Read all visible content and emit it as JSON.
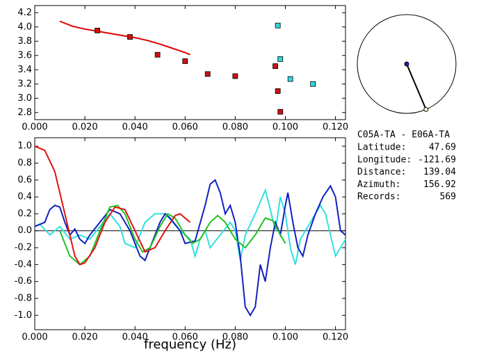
{
  "chart_data": [
    {
      "type": "scatter",
      "xlim": [
        0,
        0.124
      ],
      "ylim": [
        2.7,
        4.3
      ],
      "xticks": [
        {
          "value": 0,
          "label": "0.000"
        },
        {
          "value": 0.02,
          "label": "0.020"
        },
        {
          "value": 0.04,
          "label": "0.040"
        },
        {
          "value": 0.06,
          "label": "0.060"
        },
        {
          "value": 0.08,
          "label": "0.080"
        },
        {
          "value": 0.1,
          "label": "0.100"
        },
        {
          "value": 0.12,
          "label": "0.120"
        }
      ],
      "yticks": [
        4.2,
        {
          "value": 4.0,
          "label": "4.0"
        },
        3.8,
        3.6,
        3.4,
        3.2,
        {
          "value": 3.0,
          "label": "3.0"
        },
        2.8
      ],
      "series": [
        {
          "style": "line",
          "color": "#e00000",
          "x": [
            0.01,
            0.015,
            0.02,
            0.025,
            0.03,
            0.035,
            0.04,
            0.045,
            0.05,
            0.055,
            0.06,
            0.062
          ],
          "values": [
            4.08,
            4.01,
            3.97,
            3.94,
            3.91,
            3.88,
            3.85,
            3.81,
            3.76,
            3.7,
            3.64,
            3.61
          ]
        },
        {
          "style": "marker",
          "color": "#d01010",
          "x": [
            0.025,
            0.038,
            0.049,
            0.06,
            0.069,
            0.08,
            0.096,
            0.097,
            0.098
          ],
          "values": [
            3.95,
            3.86,
            3.61,
            3.52,
            3.34,
            3.31,
            3.45,
            3.1,
            2.81
          ]
        },
        {
          "style": "marker",
          "color": "#30d8d8",
          "x": [
            0.097,
            0.098,
            0.102,
            0.111
          ],
          "values": [
            4.02,
            3.55,
            3.27,
            3.2
          ]
        }
      ]
    },
    {
      "type": "line",
      "xlabel": "frequency (Hz)",
      "xlim": [
        0,
        0.124
      ],
      "ylim": [
        -1.17,
        1.1
      ],
      "xticks": [
        {
          "value": 0,
          "label": "0.000"
        },
        {
          "value": 0.02,
          "label": "0.020"
        },
        {
          "value": 0.04,
          "label": "0.040"
        },
        {
          "value": 0.06,
          "label": "0.060"
        },
        {
          "value": 0.08,
          "label": "0.080"
        },
        {
          "value": 0.1,
          "label": "0.100"
        },
        {
          "value": 0.12,
          "label": "0.120"
        }
      ],
      "yticks": [
        {
          "value": 1.0,
          "label": "1.0"
        },
        0.8,
        0.6,
        0.4,
        0.2,
        {
          "value": 0.0,
          "label": "0.0"
        },
        -0.2,
        -0.4,
        -0.6,
        -0.8,
        {
          "value": -1.0,
          "label": "-1.0"
        }
      ],
      "series": [
        {
          "color": "#30e0e0",
          "x": [
            0,
            0.002,
            0.006,
            0.01,
            0.014,
            0.018,
            0.022,
            0.026,
            0.03,
            0.034,
            0.036,
            0.04,
            0.044,
            0.048,
            0.052,
            0.055,
            0.058,
            0.062,
            0.064,
            0.066,
            0.068,
            0.07,
            0.074,
            0.078,
            0.08,
            0.082,
            0.084,
            0.088,
            0.092,
            0.094,
            0.096,
            0.098,
            0.1,
            0.102,
            0.104,
            0.106,
            0.11,
            0.114,
            0.116,
            0.118,
            0.12,
            0.124
          ],
          "values": [
            0.05,
            0.08,
            -0.05,
            0.05,
            -0.1,
            -0.05,
            -0.1,
            0.05,
            0.2,
            0.05,
            -0.15,
            -0.2,
            0.1,
            0.2,
            0.2,
            0.1,
            0.0,
            -0.1,
            -0.3,
            -0.1,
            0.0,
            -0.2,
            -0.05,
            0.1,
            0.0,
            -0.35,
            -0.05,
            0.2,
            0.48,
            0.25,
            0.0,
            0.4,
            0.2,
            -0.2,
            -0.4,
            -0.1,
            0.1,
            0.3,
            0.2,
            -0.05,
            -0.3,
            -0.1
          ]
        },
        {
          "color": "#1020c0",
          "x": [
            0,
            0.004,
            0.006,
            0.008,
            0.01,
            0.012,
            0.014,
            0.016,
            0.018,
            0.02,
            0.022,
            0.026,
            0.03,
            0.034,
            0.038,
            0.042,
            0.044,
            0.046,
            0.05,
            0.052,
            0.054,
            0.058,
            0.06,
            0.064,
            0.068,
            0.07,
            0.072,
            0.074,
            0.076,
            0.078,
            0.08,
            0.082,
            0.084,
            0.086,
            0.088,
            0.09,
            0.092,
            0.094,
            0.096,
            0.098,
            0.1,
            0.101,
            0.103,
            0.105,
            0.107,
            0.109,
            0.112,
            0.115,
            0.118,
            0.12,
            0.122,
            0.124
          ],
          "values": [
            0.05,
            0.1,
            0.25,
            0.3,
            0.28,
            0.1,
            -0.05,
            0.02,
            -0.1,
            -0.15,
            -0.05,
            0.1,
            0.25,
            0.2,
            0.0,
            -0.3,
            -0.35,
            -0.2,
            0.1,
            0.2,
            0.15,
            0.0,
            -0.15,
            -0.12,
            0.3,
            0.55,
            0.6,
            0.45,
            0.2,
            0.3,
            0.1,
            -0.3,
            -0.9,
            -1.0,
            -0.9,
            -0.4,
            -0.6,
            -0.2,
            0.1,
            -0.05,
            0.3,
            0.45,
            0.1,
            -0.2,
            -0.3,
            -0.05,
            0.2,
            0.4,
            0.53,
            0.4,
            0.0,
            -0.05
          ]
        },
        {
          "color": "#20c020",
          "x": [
            0.01,
            0.014,
            0.018,
            0.022,
            0.026,
            0.03,
            0.033,
            0.036,
            0.04,
            0.043,
            0.046,
            0.05,
            0.053,
            0.056,
            0.06,
            0.063,
            0.066,
            0.07,
            0.073,
            0.076,
            0.08,
            0.084,
            0.088,
            0.092,
            0.095,
            0.098,
            0.1
          ],
          "values": [
            0.0,
            -0.3,
            -0.4,
            -0.3,
            0.0,
            0.28,
            0.3,
            0.2,
            -0.1,
            -0.25,
            -0.2,
            0.05,
            0.2,
            0.15,
            -0.05,
            -0.15,
            -0.1,
            0.1,
            0.18,
            0.1,
            -0.1,
            -0.2,
            -0.05,
            0.15,
            0.12,
            -0.05,
            -0.15
          ]
        },
        {
          "color": "#e01010",
          "x": [
            0,
            0.004,
            0.008,
            0.012,
            0.016,
            0.018,
            0.02,
            0.024,
            0.028,
            0.032,
            0.036,
            0.04,
            0.044,
            0.048,
            0.052,
            0.056,
            0.058,
            0.062
          ],
          "values": [
            1.0,
            0.95,
            0.7,
            0.2,
            -0.3,
            -0.4,
            -0.38,
            -0.2,
            0.1,
            0.28,
            0.25,
            0.0,
            -0.25,
            -0.2,
            0.0,
            0.18,
            0.2,
            0.1
          ]
        }
      ]
    }
  ],
  "info": {
    "title": "C05A-TA - E06A-TA",
    "rows": [
      {
        "label": "Latitude:",
        "value": 47.69
      },
      {
        "label": "Longitude:",
        "value": -121.69
      },
      {
        "label": "Distance:",
        "value": 139.04
      },
      {
        "label": "Azimuth:",
        "value": 156.92
      },
      {
        "label": "Records:",
        "value": 569
      }
    ]
  }
}
